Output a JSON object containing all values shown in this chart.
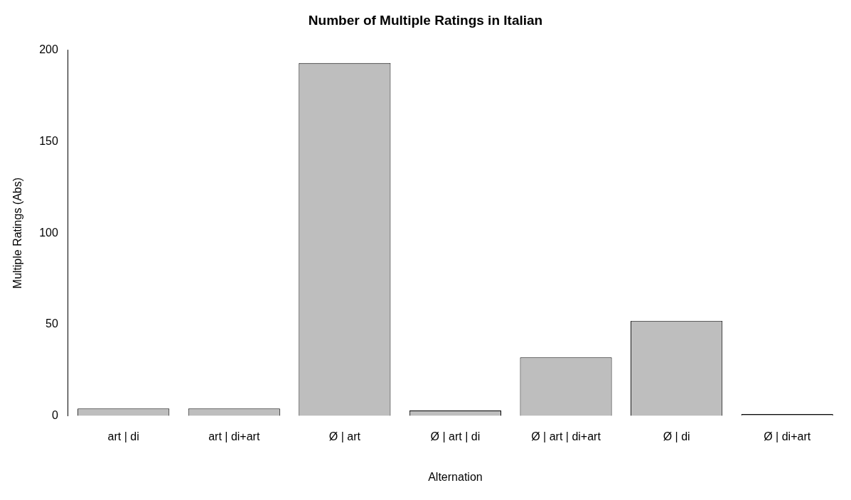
{
  "chart_data": {
    "type": "bar",
    "title": "Number of Multiple Ratings in Italian",
    "xlabel": "Alternation",
    "ylabel": "Multiple Ratings (Abs)",
    "categories": [
      "art | di",
      "art | di+art",
      "Ø | art",
      "Ø | art | di",
      "Ø | art | di+art",
      "Ø | di",
      "Ø | di+art"
    ],
    "values": [
      4,
      4,
      193,
      3,
      32,
      52,
      1
    ],
    "color": "#bebebe",
    "ylim": [
      0,
      200
    ],
    "yticks": [
      0,
      50,
      100,
      150,
      200
    ],
    "grid": false,
    "legend": false
  }
}
